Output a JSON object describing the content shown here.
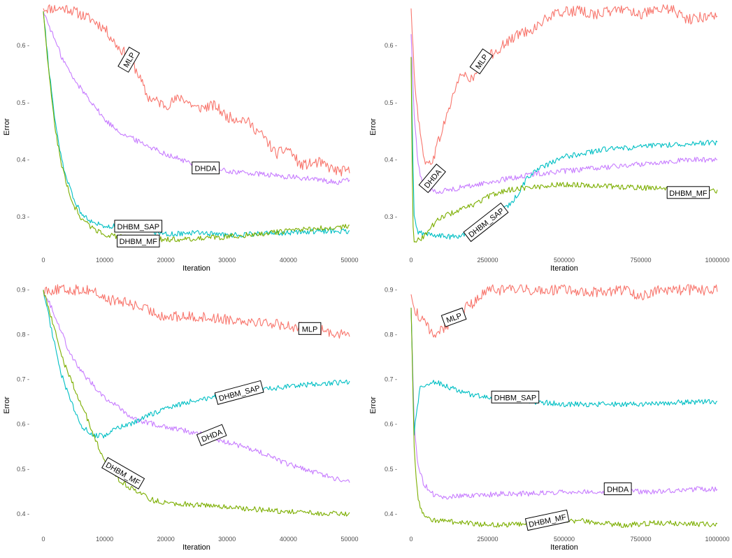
{
  "colors": {
    "MLP": "#F8766D",
    "DHDA": "#C77CFF",
    "DHBM_SAP": "#00BFC4",
    "DHBM_MF": "#7CAE00"
  },
  "chart_data": [
    {
      "type": "line",
      "xlabel": "Iteration",
      "ylabel": "Error",
      "xlim": [
        0,
        50000
      ],
      "ylim": [
        0.245,
        0.67
      ],
      "xticks": [
        0,
        10000,
        20000,
        30000,
        40000,
        50000
      ],
      "xtick_labels": [
        "0",
        "10000",
        "20000",
        "30000",
        "40000",
        "50000"
      ],
      "yticks": [
        0.3,
        0.4,
        0.5,
        0.6
      ],
      "ytick_labels": [
        "0.3 -",
        "0.4 -",
        "0.5 -",
        "0.6 -"
      ],
      "series": [
        {
          "key": "MLP",
          "label": "MLP",
          "label_at": [
            14000,
            0.575
          ],
          "label_angle": -60,
          "x": [
            0,
            4000,
            8000,
            10000,
            12000,
            14000,
            15500,
            17000,
            20000,
            22500,
            25000,
            28000,
            30000,
            33000,
            36000,
            38000,
            40000,
            42000,
            45000,
            48000,
            50000
          ],
          "y": [
            0.665,
            0.665,
            0.645,
            0.63,
            0.6,
            0.58,
            0.55,
            0.51,
            0.495,
            0.51,
            0.49,
            0.495,
            0.475,
            0.47,
            0.44,
            0.41,
            0.42,
            0.39,
            0.395,
            0.38,
            0.38
          ]
        },
        {
          "key": "DHDA",
          "label": "DHDA",
          "label_at": [
            26500,
            0.385
          ],
          "label_angle": 0,
          "x": [
            0,
            1500,
            3000,
            5000,
            8000,
            10000,
            13000,
            16000,
            20000,
            25000,
            30000,
            35000,
            40000,
            45000,
            48000,
            50000
          ],
          "y": [
            0.66,
            0.62,
            0.58,
            0.54,
            0.5,
            0.47,
            0.445,
            0.43,
            0.41,
            0.39,
            0.38,
            0.375,
            0.37,
            0.365,
            0.36,
            0.365
          ]
        },
        {
          "key": "DHBM_SAP",
          "label": "DHBM_SAP",
          "label_at": [
            15500,
            0.283
          ],
          "label_angle": 0,
          "x": [
            0,
            1000,
            2000,
            3000,
            4000,
            5000,
            6000,
            7000,
            8000,
            10000,
            12000,
            15000,
            18000,
            20000,
            25000,
            28000,
            30000,
            35000,
            40000,
            45000,
            50000
          ],
          "y": [
            0.66,
            0.55,
            0.46,
            0.4,
            0.36,
            0.33,
            0.31,
            0.3,
            0.29,
            0.285,
            0.283,
            0.28,
            0.275,
            0.27,
            0.272,
            0.27,
            0.268,
            0.27,
            0.272,
            0.275,
            0.275
          ]
        },
        {
          "key": "DHBM_MF",
          "label": "DHBM_MF",
          "label_at": [
            15500,
            0.257
          ],
          "label_angle": 0,
          "x": [
            0,
            1000,
            2000,
            3000,
            4000,
            5000,
            6000,
            7000,
            8000,
            10000,
            12000,
            15000,
            18000,
            20000,
            25000,
            30000,
            35000,
            40000,
            45000,
            50000
          ],
          "y": [
            0.66,
            0.54,
            0.45,
            0.39,
            0.35,
            0.32,
            0.3,
            0.29,
            0.28,
            0.27,
            0.265,
            0.263,
            0.262,
            0.26,
            0.262,
            0.265,
            0.27,
            0.275,
            0.28,
            0.283
          ]
        }
      ]
    },
    {
      "type": "line",
      "xlabel": "Iteration",
      "ylabel": "Error",
      "xlim": [
        0,
        1000000
      ],
      "ylim": [
        0.245,
        0.67
      ],
      "xticks": [
        0,
        250000,
        500000,
        750000,
        1000000
      ],
      "xtick_labels": [
        "0",
        "250000",
        "500000",
        "750000",
        "1000000"
      ],
      "yticks": [
        0.3,
        0.4,
        0.5,
        0.6
      ],
      "ytick_labels": [
        "0.3 -",
        "0.4 -",
        "0.5 -",
        "0.6 -"
      ],
      "series": [
        {
          "key": "MLP",
          "label": "MLP",
          "label_at": [
            230000,
            0.572
          ],
          "label_angle": -55,
          "x": [
            0,
            5000,
            15000,
            30000,
            50000,
            70000,
            100000,
            130000,
            160000,
            200000,
            250000,
            300000,
            350000,
            400000,
            450000,
            500000,
            550000,
            600000,
            650000,
            700000,
            750000,
            800000,
            850000,
            900000,
            950000,
            1000000
          ],
          "y": [
            0.665,
            0.6,
            0.52,
            0.44,
            0.39,
            0.4,
            0.45,
            0.5,
            0.55,
            0.54,
            0.58,
            0.6,
            0.62,
            0.63,
            0.65,
            0.66,
            0.66,
            0.655,
            0.66,
            0.665,
            0.655,
            0.66,
            0.665,
            0.645,
            0.65,
            0.655
          ]
        },
        {
          "key": "DHDA",
          "label": "DHDA",
          "label_at": [
            70000,
            0.367
          ],
          "label_angle": -50,
          "x": [
            0,
            5000,
            10000,
            20000,
            30000,
            50000,
            70000,
            100000,
            150000,
            200000,
            300000,
            400000,
            500000,
            600000,
            700000,
            800000,
            900000,
            1000000
          ],
          "y": [
            0.62,
            0.55,
            0.48,
            0.41,
            0.37,
            0.35,
            0.345,
            0.345,
            0.35,
            0.355,
            0.365,
            0.375,
            0.38,
            0.385,
            0.39,
            0.395,
            0.4,
            0.4
          ]
        },
        {
          "key": "DHBM_SAP",
          "label": "DHBM_SAP",
          "label_at": [
            245000,
            0.29
          ],
          "label_angle": -38,
          "x": [
            0,
            5000,
            10000,
            20000,
            40000,
            80000,
            120000,
            160000,
            200000,
            240000,
            280000,
            320000,
            350000,
            380000,
            420000,
            460000,
            500000,
            550000,
            600000,
            650000,
            700000,
            800000,
            900000,
            1000000
          ],
          "y": [
            0.58,
            0.42,
            0.3,
            0.275,
            0.27,
            0.268,
            0.265,
            0.265,
            0.28,
            0.29,
            0.31,
            0.32,
            0.34,
            0.37,
            0.385,
            0.395,
            0.405,
            0.41,
            0.415,
            0.42,
            0.42,
            0.425,
            0.428,
            0.43
          ]
        },
        {
          "key": "DHBM_MF",
          "label": "DHBM_MF",
          "label_at": [
            905000,
            0.342
          ],
          "label_angle": 0,
          "x": [
            0,
            5000,
            10000,
            20000,
            40000,
            70000,
            100000,
            150000,
            200000,
            250000,
            300000,
            350000,
            400000,
            450000,
            500000,
            600000,
            700000,
            800000,
            900000,
            1000000
          ],
          "y": [
            0.58,
            0.3,
            0.26,
            0.258,
            0.265,
            0.285,
            0.3,
            0.31,
            0.32,
            0.335,
            0.345,
            0.35,
            0.352,
            0.355,
            0.357,
            0.355,
            0.352,
            0.35,
            0.348,
            0.345
          ]
        }
      ]
    },
    {
      "type": "line",
      "xlabel": "Iteration",
      "ylabel": "Error",
      "xlim": [
        0,
        50000
      ],
      "ylim": [
        0.37,
        0.915
      ],
      "xticks": [
        0,
        10000,
        20000,
        30000,
        40000,
        50000
      ],
      "xtick_labels": [
        "0",
        "10000",
        "20000",
        "30000",
        "40000",
        "50000"
      ],
      "yticks": [
        0.4,
        0.5,
        0.6,
        0.7,
        0.8,
        0.9
      ],
      "ytick_labels": [
        "0.4 -",
        "0.5 -",
        "0.6 -",
        "0.7 -",
        "0.8 -",
        "0.9 -"
      ],
      "series": [
        {
          "key": "MLP",
          "label": "MLP",
          "label_at": [
            43500,
            0.813
          ],
          "label_angle": 0,
          "x": [
            0,
            4000,
            8000,
            9000,
            10000,
            12000,
            14000,
            16000,
            18000,
            20000,
            25000,
            30000,
            35000,
            40000,
            45000,
            50000
          ],
          "y": [
            0.9,
            0.9,
            0.9,
            0.89,
            0.88,
            0.875,
            0.87,
            0.86,
            0.85,
            0.84,
            0.84,
            0.835,
            0.83,
            0.82,
            0.81,
            0.8
          ]
        },
        {
          "key": "DHDA",
          "label": "DHDA",
          "label_at": [
            27500,
            0.575
          ],
          "label_angle": -22,
          "x": [
            0,
            2000,
            4000,
            6000,
            8000,
            10000,
            12000,
            15000,
            18000,
            20000,
            25000,
            30000,
            35000,
            40000,
            45000,
            50000
          ],
          "y": [
            0.9,
            0.84,
            0.77,
            0.72,
            0.69,
            0.66,
            0.64,
            0.61,
            0.6,
            0.595,
            0.58,
            0.56,
            0.54,
            0.51,
            0.49,
            0.47
          ]
        },
        {
          "key": "DHBM_SAP",
          "label": "DHBM_SAP",
          "label_at": [
            32000,
            0.67
          ],
          "label_angle": -15,
          "x": [
            0,
            1500,
            3000,
            4500,
            6000,
            8000,
            10000,
            12000,
            15000,
            18000,
            20000,
            25000,
            30000,
            35000,
            40000,
            45000,
            50000
          ],
          "y": [
            0.9,
            0.8,
            0.71,
            0.65,
            0.6,
            0.575,
            0.575,
            0.59,
            0.605,
            0.625,
            0.635,
            0.655,
            0.665,
            0.675,
            0.685,
            0.69,
            0.695
          ]
        },
        {
          "key": "DHBM_MF",
          "label": "DHBM_MF",
          "label_at": [
            13000,
            0.49
          ],
          "label_angle": 30,
          "x": [
            0,
            1500,
            3000,
            4500,
            6000,
            7000,
            8000,
            9000,
            10000,
            12000,
            15000,
            18000,
            20000,
            25000,
            30000,
            35000,
            40000,
            45000,
            50000
          ],
          "y": [
            0.9,
            0.83,
            0.75,
            0.7,
            0.65,
            0.62,
            0.58,
            0.55,
            0.52,
            0.48,
            0.45,
            0.43,
            0.425,
            0.42,
            0.415,
            0.41,
            0.405,
            0.4,
            0.4
          ]
        }
      ]
    },
    {
      "type": "line",
      "xlabel": "Iteration",
      "ylabel": "Error",
      "xlim": [
        0,
        1000000
      ],
      "ylim": [
        0.37,
        0.915
      ],
      "xticks": [
        0,
        250000,
        500000,
        750000,
        1000000
      ],
      "xtick_labels": [
        "0",
        "250000",
        "500000",
        "750000",
        "1000000"
      ],
      "yticks": [
        0.4,
        0.5,
        0.6,
        0.7,
        0.8,
        0.9
      ],
      "ytick_labels": [
        "0.4 -",
        "0.5 -",
        "0.6 -",
        "0.7 -",
        "0.8 -",
        "0.9 -"
      ],
      "series": [
        {
          "key": "MLP",
          "label": "MLP",
          "label_at": [
            140000,
            0.838
          ],
          "label_angle": -20,
          "x": [
            0,
            10000,
            25000,
            50000,
            75000,
            100000,
            130000,
            160000,
            200000,
            250000,
            300000,
            400000,
            500000,
            600000,
            700000,
            750000,
            800000,
            900000,
            1000000
          ],
          "y": [
            0.89,
            0.86,
            0.84,
            0.82,
            0.8,
            0.81,
            0.83,
            0.85,
            0.87,
            0.9,
            0.9,
            0.9,
            0.9,
            0.895,
            0.9,
            0.885,
            0.9,
            0.9,
            0.9
          ]
        },
        {
          "key": "DHDA",
          "label": "DHDA",
          "label_at": [
            675000,
            0.455
          ],
          "label_angle": 0,
          "x": [
            0,
            10000,
            20000,
            40000,
            60000,
            80000,
            100000,
            150000,
            200000,
            300000,
            400000,
            500000,
            600000,
            700000,
            800000,
            900000,
            1000000
          ],
          "y": [
            0.86,
            0.6,
            0.52,
            0.47,
            0.45,
            0.44,
            0.435,
            0.44,
            0.44,
            0.445,
            0.445,
            0.45,
            0.45,
            0.45,
            0.45,
            0.455,
            0.455
          ]
        },
        {
          "key": "DHBM_SAP",
          "label": "DHBM_SAP",
          "label_at": [
            340000,
            0.66
          ],
          "label_angle": 0,
          "x": [
            0,
            10000,
            20000,
            30000,
            50000,
            80000,
            100000,
            150000,
            200000,
            300000,
            400000,
            500000,
            600000,
            700000,
            800000,
            900000,
            1000000
          ],
          "y": [
            0.86,
            0.58,
            0.64,
            0.68,
            0.69,
            0.695,
            0.69,
            0.675,
            0.665,
            0.655,
            0.65,
            0.645,
            0.645,
            0.645,
            0.645,
            0.65,
            0.65
          ]
        },
        {
          "key": "DHBM_MF",
          "label": "DHBM_MF",
          "label_at": [
            445000,
            0.385
          ],
          "label_angle": -12,
          "x": [
            0,
            10000,
            20000,
            30000,
            50000,
            80000,
            100000,
            150000,
            200000,
            300000,
            400000,
            500000,
            550000,
            600000,
            700000,
            800000,
            900000,
            1000000
          ],
          "y": [
            0.86,
            0.55,
            0.45,
            0.41,
            0.39,
            0.385,
            0.385,
            0.38,
            0.378,
            0.375,
            0.38,
            0.385,
            0.385,
            0.38,
            0.375,
            0.38,
            0.378,
            0.375
          ]
        }
      ]
    }
  ]
}
